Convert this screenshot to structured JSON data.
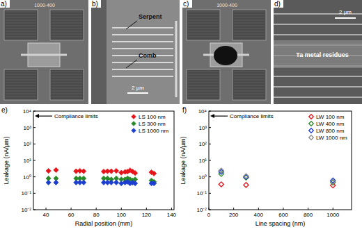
{
  "panels": {
    "a": {
      "label": "a)",
      "chip_id": "1000-400"
    },
    "b": {
      "label": "b)",
      "texts": [
        "Serpent",
        "Comb"
      ],
      "scale_bar": "2 µm"
    },
    "c": {
      "label": "c)",
      "chip_id": "1000-400"
    },
    "d": {
      "label": "d)",
      "scale_bar": "2 µm",
      "annotation": "Ta metal residues"
    }
  },
  "chart_data": [
    {
      "type": "scatter",
      "title": "e)",
      "x_label": "Radial position (mm)",
      "y_label": "Leakage (nA/µm)",
      "log": "y",
      "legend": "upper-right",
      "marker": "diamond",
      "xlim": [
        30,
        142
      ],
      "xticks": [
        40,
        60,
        80,
        100,
        120,
        140
      ],
      "ylim": [
        0.01,
        10000
      ],
      "yticks": [
        {
          "value": 0.01,
          "label": "10⁻²"
        },
        {
          "value": 0.1,
          "label": "10⁻¹"
        },
        {
          "value": 1,
          "label": "10⁰"
        },
        {
          "value": 10,
          "label": "10¹"
        },
        {
          "value": 100,
          "label": "10²"
        },
        {
          "value": 1000,
          "label": "10³"
        },
        {
          "value": 10000,
          "label": "10⁴"
        }
      ],
      "annotations": [
        {
          "text": "Compliance limits",
          "y": 5000
        }
      ],
      "series": [
        {
          "name": "LS 100 nm",
          "color": "#e8141b",
          "x": [
            42,
            48,
            64,
            67,
            70,
            86,
            89,
            92,
            96,
            100,
            103,
            105,
            107,
            109,
            111,
            124,
            126
          ],
          "values": [
            2.3,
            2.6,
            2.2,
            2.3,
            2.2,
            2.1,
            2.2,
            2.2,
            2.3,
            1.8,
            2.0,
            2.1,
            2.5,
            2.1,
            1.7,
            1.9,
            1.6
          ]
        },
        {
          "name": "LS 300 nm",
          "color": "#2a8a2a",
          "x": [
            42,
            48,
            64,
            67,
            70,
            86,
            89,
            92,
            96,
            100,
            103,
            105,
            107,
            109,
            111,
            124,
            126
          ],
          "values": [
            0.8,
            0.8,
            0.8,
            0.8,
            0.8,
            0.8,
            0.8,
            0.7,
            0.8,
            0.7,
            0.7,
            0.8,
            0.7,
            0.6,
            0.7,
            0.6,
            0.5
          ]
        },
        {
          "name": "LS 1000 nm",
          "color": "#1c3fd0",
          "x": [
            42,
            48,
            64,
            67,
            70,
            86,
            89,
            92,
            96,
            100,
            103,
            105,
            107,
            109,
            111,
            124,
            126
          ],
          "values": [
            0.45,
            0.45,
            0.45,
            0.45,
            0.45,
            0.45,
            0.45,
            0.45,
            0.45,
            0.4,
            0.45,
            0.5,
            0.4,
            0.45,
            0.4,
            0.4,
            0.4
          ]
        }
      ]
    },
    {
      "type": "scatter",
      "title": "f)",
      "x_label": "Line spacing (nm)",
      "y_label": "Leakage (nA/µm)",
      "log": "y",
      "legend": "upper-right",
      "marker": "diamond-open",
      "xlim": [
        0,
        1150
      ],
      "xticks": [
        0,
        200,
        400,
        600,
        800,
        1000
      ],
      "ylim": [
        0.01,
        10000
      ],
      "yticks": [
        {
          "value": 0.01,
          "label": "10⁻²"
        },
        {
          "value": 0.1,
          "label": "10⁻¹"
        },
        {
          "value": 1,
          "label": "10⁰"
        },
        {
          "value": 10,
          "label": "10¹"
        },
        {
          "value": 100,
          "label": "10²"
        },
        {
          "value": 1000,
          "label": "10³"
        },
        {
          "value": 10000,
          "label": "10⁴"
        }
      ],
      "annotations": [
        {
          "text": "Compliance limits",
          "y": 5000
        }
      ],
      "series": [
        {
          "name": "LW 100 nm",
          "color": "#e8141b",
          "x": [
            100,
            300,
            1000
          ],
          "values": [
            0.35,
            0.32,
            0.3
          ]
        },
        {
          "name": "LW 400 nm",
          "color": "#2a8a2a",
          "x": [
            100,
            300,
            1000
          ],
          "values": [
            1.5,
            0.9,
            0.45
          ]
        },
        {
          "name": "LW 800 nm",
          "color": "#1c3fd0",
          "x": [
            100,
            300,
            1000
          ],
          "values": [
            2.0,
            1.0,
            0.6
          ]
        },
        {
          "name": "LW 1000 nm",
          "color": "#8c8c8c",
          "x": [
            100,
            300,
            1000
          ],
          "values": [
            2.4,
            1.1,
            0.5
          ]
        }
      ]
    }
  ]
}
